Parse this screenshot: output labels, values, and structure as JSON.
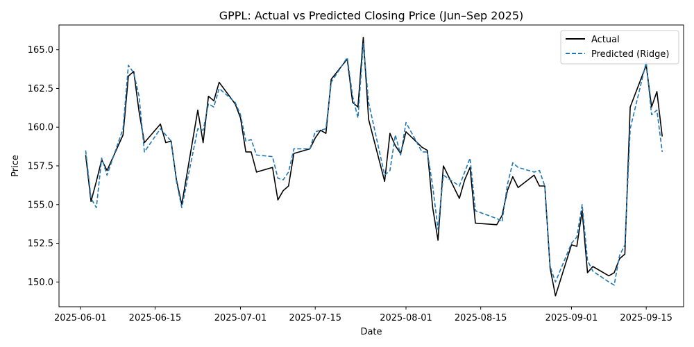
{
  "chart_data": {
    "type": "line",
    "title": "GPPL: Actual vs Predicted Closing Price (Jun–Sep 2025)",
    "xlabel": "Date",
    "ylabel": "Price",
    "xlim": [
      "2025-05-28",
      "2025-09-22"
    ],
    "ylim": [
      148.4,
      166.6
    ],
    "x_ticks": [
      "2025-06-01",
      "2025-06-15",
      "2025-07-01",
      "2025-07-15",
      "2025-08-01",
      "2025-08-15",
      "2025-09-01",
      "2025-09-15"
    ],
    "y_ticks": [
      150.0,
      152.5,
      155.0,
      157.5,
      160.0,
      162.5,
      165.0
    ],
    "grid": false,
    "legend": "top-right",
    "series": [
      {
        "name": "Actual",
        "color": "#000000",
        "style": "solid",
        "points": [
          [
            "2025-06-02",
            158.2
          ],
          [
            "2025-06-03",
            155.2
          ],
          [
            "2025-06-04",
            156.5
          ],
          [
            "2025-06-05",
            157.9
          ],
          [
            "2025-06-06",
            157.2
          ],
          [
            "2025-06-09",
            159.5
          ],
          [
            "2025-06-10",
            163.3
          ],
          [
            "2025-06-11",
            163.6
          ],
          [
            "2025-06-12",
            161.0
          ],
          [
            "2025-06-13",
            159.0
          ],
          [
            "2025-06-16",
            160.2
          ],
          [
            "2025-06-17",
            159.0
          ],
          [
            "2025-06-18",
            159.1
          ],
          [
            "2025-06-19",
            156.6
          ],
          [
            "2025-06-20",
            155.0
          ],
          [
            "2025-06-23",
            161.1
          ],
          [
            "2025-06-24",
            159.0
          ],
          [
            "2025-06-25",
            162.0
          ],
          [
            "2025-06-26",
            161.7
          ],
          [
            "2025-06-27",
            162.9
          ],
          [
            "2025-06-30",
            161.5
          ],
          [
            "2025-07-01",
            160.6
          ],
          [
            "2025-07-02",
            158.4
          ],
          [
            "2025-07-03",
            158.4
          ],
          [
            "2025-07-04",
            157.1
          ],
          [
            "2025-07-07",
            157.4
          ],
          [
            "2025-07-08",
            155.3
          ],
          [
            "2025-07-09",
            155.9
          ],
          [
            "2025-07-10",
            156.2
          ],
          [
            "2025-07-11",
            158.3
          ],
          [
            "2025-07-14",
            158.6
          ],
          [
            "2025-07-15",
            159.3
          ],
          [
            "2025-07-16",
            159.8
          ],
          [
            "2025-07-17",
            159.6
          ],
          [
            "2025-07-18",
            163.1
          ],
          [
            "2025-07-21",
            164.4
          ],
          [
            "2025-07-22",
            161.6
          ],
          [
            "2025-07-23",
            161.3
          ],
          [
            "2025-07-24",
            165.8
          ],
          [
            "2025-07-25",
            160.5
          ],
          [
            "2025-07-28",
            156.5
          ],
          [
            "2025-07-29",
            159.6
          ],
          [
            "2025-07-30",
            158.8
          ],
          [
            "2025-07-31",
            158.3
          ],
          [
            "2025-08-01",
            159.7
          ],
          [
            "2025-08-04",
            158.7
          ],
          [
            "2025-08-05",
            158.5
          ],
          [
            "2025-08-06",
            154.8
          ],
          [
            "2025-08-07",
            152.7
          ],
          [
            "2025-08-08",
            157.5
          ],
          [
            "2025-08-11",
            155.4
          ],
          [
            "2025-08-12",
            156.6
          ],
          [
            "2025-08-13",
            157.4
          ],
          [
            "2025-08-14",
            153.8
          ],
          [
            "2025-08-18",
            153.7
          ],
          [
            "2025-08-19",
            154.3
          ],
          [
            "2025-08-20",
            155.9
          ],
          [
            "2025-08-21",
            156.8
          ],
          [
            "2025-08-22",
            156.1
          ],
          [
            "2025-08-25",
            156.9
          ],
          [
            "2025-08-26",
            156.2
          ],
          [
            "2025-08-27",
            156.2
          ],
          [
            "2025-08-28",
            150.9
          ],
          [
            "2025-08-29",
            149.1
          ],
          [
            "2025-09-01",
            152.4
          ],
          [
            "2025-09-02",
            152.3
          ],
          [
            "2025-09-03",
            154.6
          ],
          [
            "2025-09-04",
            150.6
          ],
          [
            "2025-09-05",
            151.0
          ],
          [
            "2025-09-08",
            150.4
          ],
          [
            "2025-09-09",
            150.6
          ],
          [
            "2025-09-10",
            151.5
          ],
          [
            "2025-09-11",
            151.8
          ],
          [
            "2025-09-12",
            161.3
          ],
          [
            "2025-09-15",
            164.0
          ],
          [
            "2025-09-16",
            161.3
          ],
          [
            "2025-09-17",
            162.3
          ],
          [
            "2025-09-18",
            159.4
          ]
        ]
      },
      {
        "name": "Predicted (Ridge)",
        "color": "#1f77b4",
        "style": "dashed",
        "points": [
          [
            "2025-06-02",
            158.5
          ],
          [
            "2025-06-03",
            155.4
          ],
          [
            "2025-06-04",
            154.8
          ],
          [
            "2025-06-05",
            158.0
          ],
          [
            "2025-06-06",
            156.9
          ],
          [
            "2025-06-09",
            159.9
          ],
          [
            "2025-06-10",
            164.0
          ],
          [
            "2025-06-11",
            163.5
          ],
          [
            "2025-06-12",
            162.0
          ],
          [
            "2025-06-13",
            158.4
          ],
          [
            "2025-06-16",
            159.9
          ],
          [
            "2025-06-17",
            159.5
          ],
          [
            "2025-06-18",
            159.1
          ],
          [
            "2025-06-19",
            156.5
          ],
          [
            "2025-06-20",
            154.8
          ],
          [
            "2025-06-23",
            159.9
          ],
          [
            "2025-06-24",
            159.8
          ],
          [
            "2025-06-25",
            161.5
          ],
          [
            "2025-06-26",
            161.3
          ],
          [
            "2025-06-27",
            162.5
          ],
          [
            "2025-06-30",
            161.6
          ],
          [
            "2025-07-01",
            160.8
          ],
          [
            "2025-07-02",
            159.1
          ],
          [
            "2025-07-03",
            159.2
          ],
          [
            "2025-07-04",
            158.2
          ],
          [
            "2025-07-07",
            158.1
          ],
          [
            "2025-07-08",
            156.7
          ],
          [
            "2025-07-09",
            156.6
          ],
          [
            "2025-07-10",
            157.1
          ],
          [
            "2025-07-11",
            158.6
          ],
          [
            "2025-07-14",
            158.6
          ],
          [
            "2025-07-15",
            159.7
          ],
          [
            "2025-07-16",
            159.8
          ],
          [
            "2025-07-17",
            159.9
          ],
          [
            "2025-07-18",
            162.9
          ],
          [
            "2025-07-21",
            164.5
          ],
          [
            "2025-07-22",
            162.0
          ],
          [
            "2025-07-23",
            160.6
          ],
          [
            "2025-07-24",
            165.4
          ],
          [
            "2025-07-25",
            161.6
          ],
          [
            "2025-07-28",
            156.9
          ],
          [
            "2025-07-29",
            157.2
          ],
          [
            "2025-07-30",
            159.5
          ],
          [
            "2025-07-31",
            158.2
          ],
          [
            "2025-08-01",
            160.3
          ],
          [
            "2025-08-04",
            158.4
          ],
          [
            "2025-08-05",
            158.4
          ],
          [
            "2025-08-06",
            156.2
          ],
          [
            "2025-08-07",
            153.4
          ],
          [
            "2025-08-08",
            156.9
          ],
          [
            "2025-08-11",
            156.2
          ],
          [
            "2025-08-12",
            157.1
          ],
          [
            "2025-08-13",
            158.0
          ],
          [
            "2025-08-14",
            154.6
          ],
          [
            "2025-08-18",
            154.1
          ],
          [
            "2025-08-19",
            153.9
          ],
          [
            "2025-08-20",
            156.3
          ],
          [
            "2025-08-21",
            157.7
          ],
          [
            "2025-08-22",
            157.4
          ],
          [
            "2025-08-25",
            157.1
          ],
          [
            "2025-08-26",
            157.2
          ],
          [
            "2025-08-27",
            156.2
          ],
          [
            "2025-08-28",
            151.0
          ],
          [
            "2025-08-29",
            150.0
          ],
          [
            "2025-09-01",
            152.5
          ],
          [
            "2025-09-02",
            152.9
          ],
          [
            "2025-09-03",
            155.0
          ],
          [
            "2025-09-04",
            151.4
          ],
          [
            "2025-09-05",
            150.7
          ],
          [
            "2025-09-08",
            150.0
          ],
          [
            "2025-09-09",
            149.8
          ],
          [
            "2025-09-10",
            151.7
          ],
          [
            "2025-09-11",
            152.4
          ],
          [
            "2025-09-12",
            159.9
          ],
          [
            "2025-09-15",
            164.2
          ],
          [
            "2025-09-16",
            160.8
          ],
          [
            "2025-09-17",
            161.1
          ],
          [
            "2025-09-18",
            158.4
          ]
        ]
      }
    ]
  }
}
